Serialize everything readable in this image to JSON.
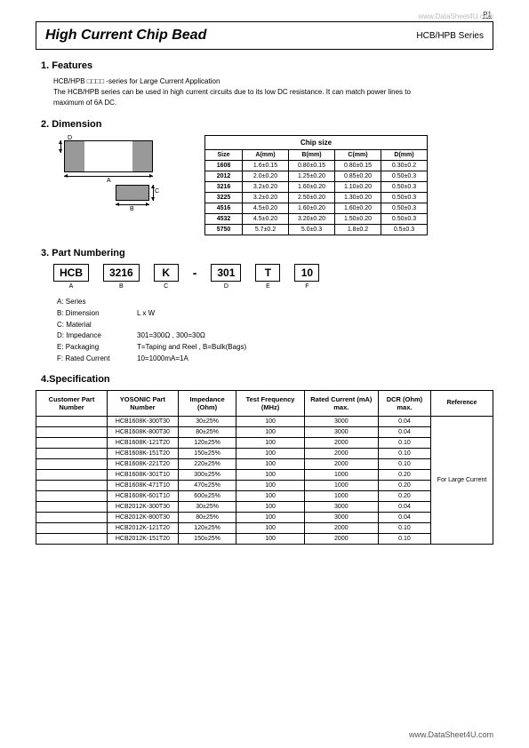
{
  "page": {
    "num": "P1",
    "watermark_top": "www.DataSheet4U.com",
    "footer": "www.DataSheet4U.com"
  },
  "title": {
    "main": "High Current Chip Bead",
    "series": "HCB/HPB Series"
  },
  "sections": {
    "features": "1. Features",
    "dimension": "2. Dimension",
    "part_numbering": "3. Part Numbering",
    "specification": "4.Specification"
  },
  "features_text": {
    "l1": "HCB/HPB □□□□ -series for Large Current Application",
    "l2": "The HCB/HPB series can be used in high current circuits due to its low DC resistance. It can match power lines to",
    "l3": "maximum of 6A DC."
  },
  "dim_labels": {
    "A": "A",
    "B": "B",
    "C": "C",
    "D": "D"
  },
  "chip_table": {
    "header_top": "Chip size",
    "headers": [
      "Size",
      "A(mm)",
      "B(mm)",
      "C(mm)",
      "D(mm)"
    ],
    "rows": [
      [
        "1608",
        "1.6±0.15",
        "0.80±0.15",
        "0.80±0.15",
        "0.30±0.2"
      ],
      [
        "2012",
        "2.0±0.20",
        "1.25±0.20",
        "0.85±0.20",
        "0.50±0.3"
      ],
      [
        "3216",
        "3.2±0.20",
        "1.60±0.20",
        "1.10±0.20",
        "0.50±0.3"
      ],
      [
        "3225",
        "3.2±0.20",
        "2.50±0.20",
        "1.30±0.20",
        "0.50±0.3"
      ],
      [
        "4516",
        "4.5±0.20",
        "1.60±0.20",
        "1.60±0.20",
        "0.50±0.3"
      ],
      [
        "4532",
        "4.5±0.20",
        "3.20±0.20",
        "1.50±0.20",
        "0.50±0.3"
      ],
      [
        "5750",
        "5.7±0.2",
        "5.0±0.3",
        "1.8±0.2",
        "0.5±0.3"
      ]
    ]
  },
  "pn": {
    "boxes": [
      "HCB",
      "3216",
      "K",
      "301",
      "T",
      "10"
    ],
    "subs": [
      "A",
      "B",
      "C",
      "D",
      "E",
      "F"
    ],
    "dash": "-",
    "legend": [
      {
        "k": "A: Series",
        "v": ""
      },
      {
        "k": "B: Dimension",
        "v": "L x W"
      },
      {
        "k": "C: Material",
        "v": ""
      },
      {
        "k": "D: Impedance",
        "v": "301=300Ω , 300=30Ω"
      },
      {
        "k": "E: Packaging",
        "v": "T=Taping and Reel , B=Bulk(Bags)"
      },
      {
        "k": "F: Rated Current",
        "v": "10=1000mA=1A"
      }
    ]
  },
  "spec_table": {
    "headers": [
      "Customer\nPart Number",
      "YOSONIC\nPart Number",
      "Impedance\n(Ohm)",
      "Test Frequency\n(MHz)",
      "Rated Current\n(mA) max.",
      "DCR\n(Ohm) max.",
      "Reference"
    ],
    "reference_text": "For Large Current",
    "rows": [
      [
        "",
        "HCB1608K-300T30",
        "30±25%",
        "100",
        "3000",
        "0.04"
      ],
      [
        "",
        "HCB1608K-800T30",
        "80±25%",
        "100",
        "3000",
        "0.04"
      ],
      [
        "",
        "HCB1608K-121T20",
        "120±25%",
        "100",
        "2000",
        "0.10"
      ],
      [
        "",
        "HCB1608K-151T20",
        "150±25%",
        "100",
        "2000",
        "0.10"
      ],
      [
        "",
        "HCB1608K-221T20",
        "220±25%",
        "100",
        "2000",
        "0.10"
      ],
      [
        "",
        "HCB1608K-301T10",
        "300±25%",
        "100",
        "1000",
        "0.20"
      ],
      [
        "",
        "HCB1608K-471T10",
        "470±25%",
        "100",
        "1000",
        "0.20"
      ],
      [
        "",
        "HCB1608K-601T10",
        "600±25%",
        "100",
        "1000",
        "0.20"
      ],
      [
        "",
        "HCB2012K-300T30",
        "30±25%",
        "100",
        "3000",
        "0.04"
      ],
      [
        "",
        "HCB2012K-800T30",
        "80±25%",
        "100",
        "3000",
        "0.04"
      ],
      [
        "",
        "HCB2012K-121T20",
        "120±25%",
        "100",
        "2000",
        "0.10"
      ],
      [
        "",
        "HCB2012K-151T20",
        "150±25%",
        "100",
        "2000",
        "0.10"
      ]
    ]
  }
}
